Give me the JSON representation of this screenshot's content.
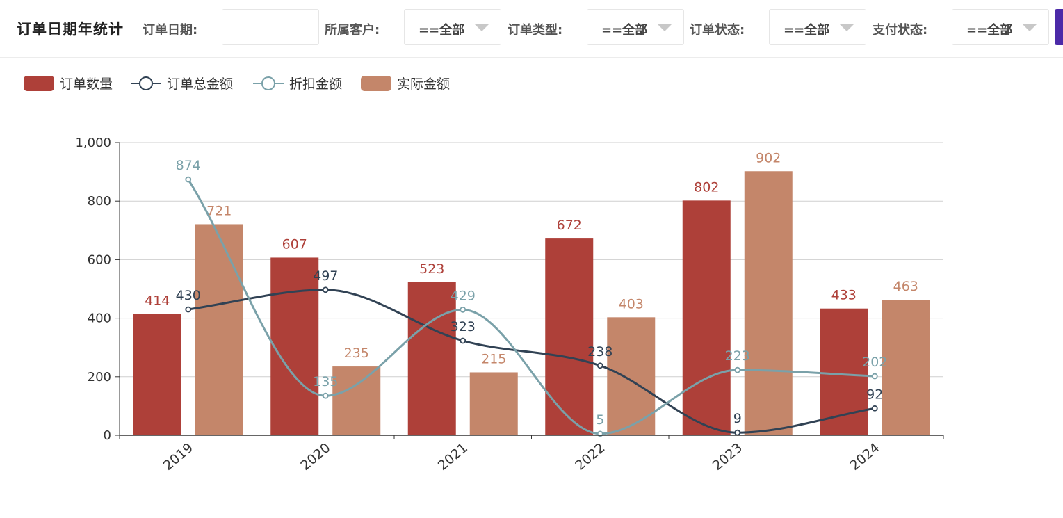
{
  "header": {
    "title": "订单日期年统计",
    "filters": [
      {
        "label": "订单日期:",
        "value": ""
      },
      {
        "label": "所属客户:",
        "value": "==全部"
      },
      {
        "label": "订单类型:",
        "value": "==全部"
      },
      {
        "label": "订单状态:",
        "value": "==全部"
      },
      {
        "label": "支付状态:",
        "value": "==全部"
      }
    ]
  },
  "chart_data": {
    "type": "bar",
    "categories": [
      "2019",
      "2020",
      "2021",
      "2022",
      "2023",
      "2024"
    ],
    "series": [
      {
        "name": "订单数量",
        "type": "bar",
        "color": "#ae4039",
        "values": [
          414,
          607,
          523,
          672,
          802,
          433
        ]
      },
      {
        "name": "订单总金额",
        "type": "line",
        "smooth": true,
        "color": "#314254",
        "values": [
          430,
          497,
          323,
          238,
          9,
          92
        ]
      },
      {
        "name": "折扣金额",
        "type": "line",
        "smooth": true,
        "color": "#7aa1a9",
        "values": [
          874,
          135,
          429,
          5,
          223,
          202
        ]
      },
      {
        "name": "实际金额",
        "type": "bar",
        "color": "#c4866a",
        "values": [
          721,
          235,
          215,
          403,
          902,
          463
        ]
      }
    ],
    "y_ticks": [
      "0",
      "200",
      "400",
      "600",
      "800",
      "1,000"
    ],
    "ylim": [
      0,
      1000
    ],
    "grid": true,
    "legend": "top-left"
  }
}
